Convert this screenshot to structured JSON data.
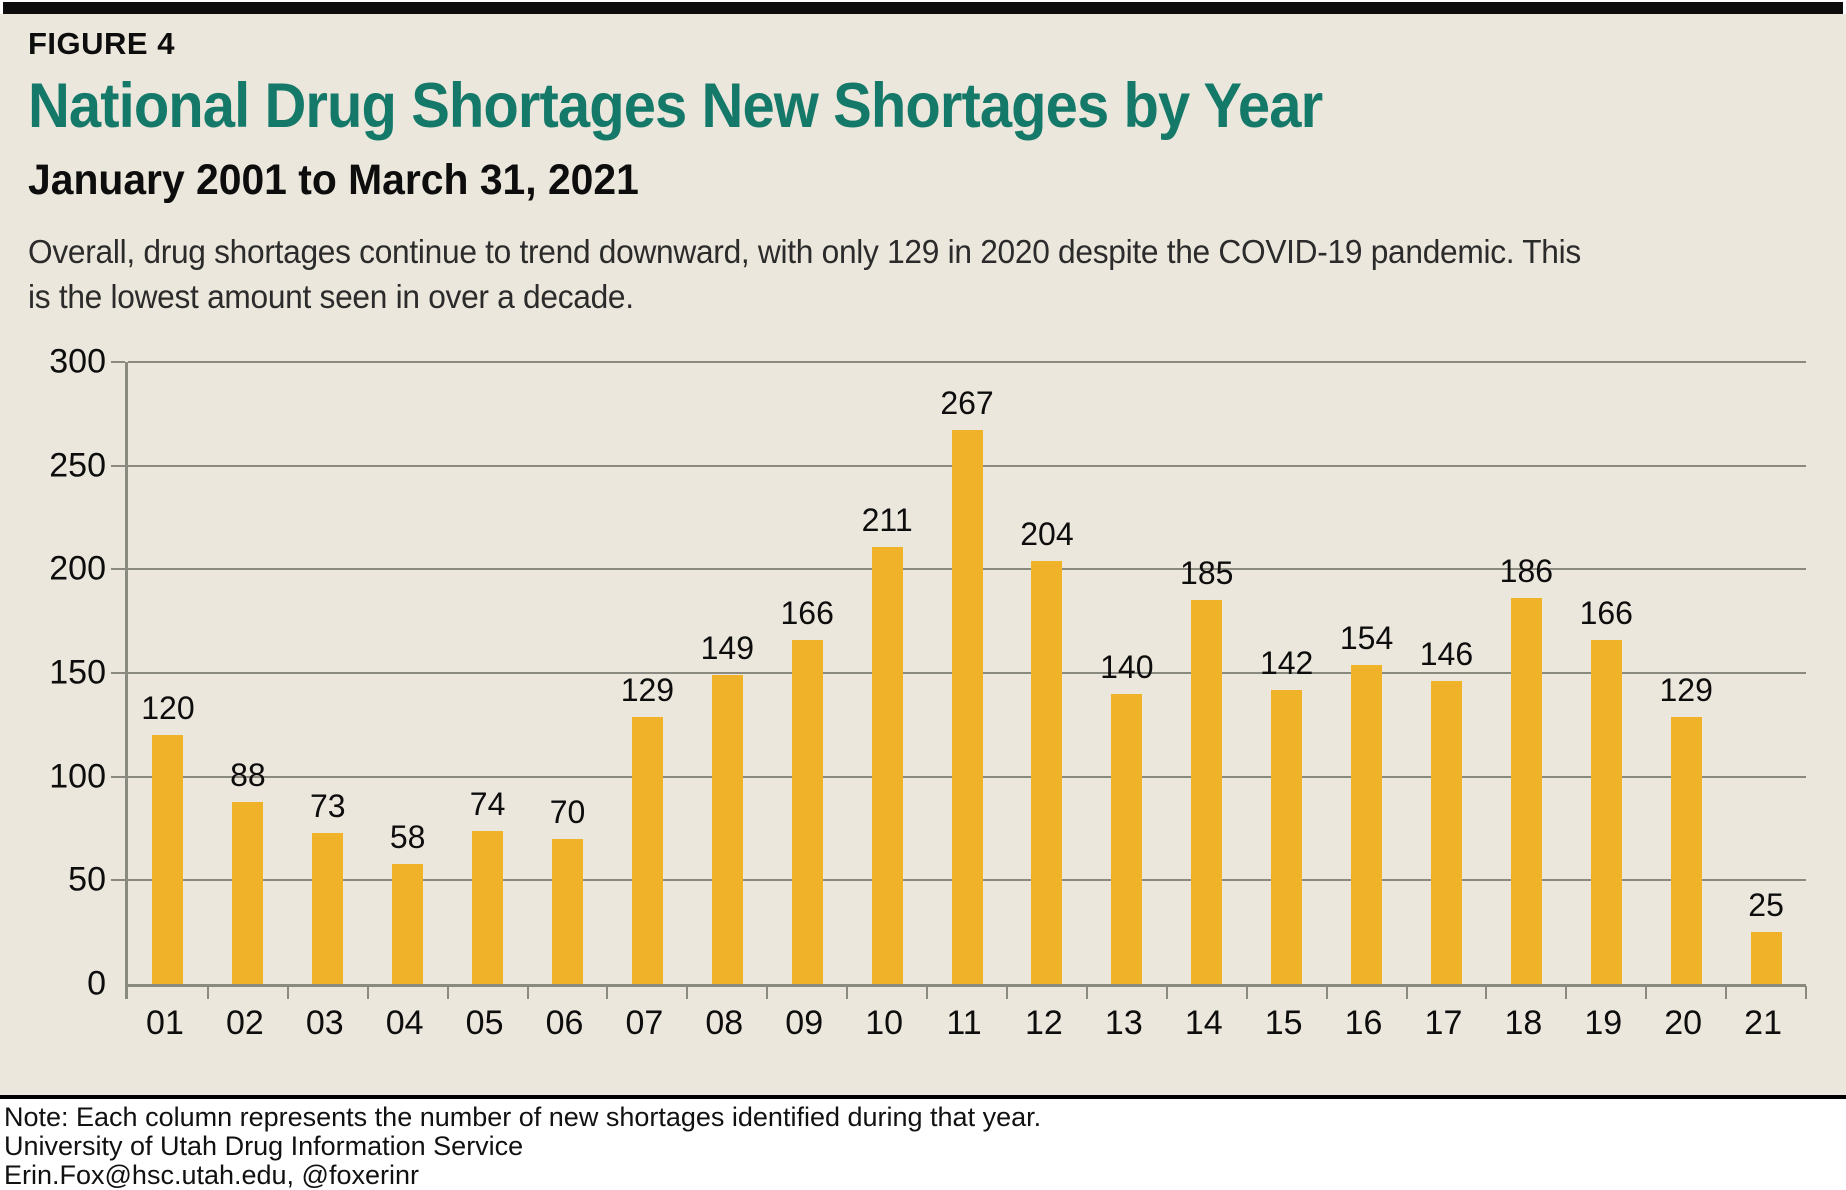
{
  "figure_label": "FIGURE 4",
  "title": "National Drug Shortages New Shortages by Year",
  "subtitle": "January 2001 to March 31, 2021",
  "description": "Overall, drug shortages continue to trend downward, with only 129 in 2020 despite the COVID-19 pandemic. This is the lowest amount seen in over a decade.",
  "colors": {
    "title_teal": "#15796a",
    "bar_gold": "#efb228",
    "background_beige": "#ece7dc",
    "grid_gray": "#8a8a80",
    "text_black": "#0d0d0d"
  },
  "chart_data": {
    "type": "bar",
    "title": "National Drug Shortages New Shortages by Year",
    "xlabel": "",
    "ylabel": "",
    "categories": [
      "01",
      "02",
      "03",
      "04",
      "05",
      "06",
      "07",
      "08",
      "09",
      "10",
      "11",
      "12",
      "13",
      "14",
      "15",
      "16",
      "17",
      "18",
      "19",
      "20",
      "21"
    ],
    "values": [
      120,
      88,
      73,
      58,
      74,
      70,
      129,
      149,
      166,
      211,
      267,
      204,
      140,
      185,
      142,
      154,
      146,
      186,
      166,
      129,
      25
    ],
    "ylim": [
      0,
      300
    ],
    "yticks": [
      0,
      50,
      100,
      150,
      200,
      250,
      300
    ],
    "grid": true,
    "legend": "none",
    "data_labels": true
  },
  "footer": {
    "note": "Note: Each column represents the number of new shortages identified during that year.",
    "source": "University of Utah Drug Information Service",
    "contact": "Erin.Fox@hsc.utah.edu, @foxerinr"
  }
}
